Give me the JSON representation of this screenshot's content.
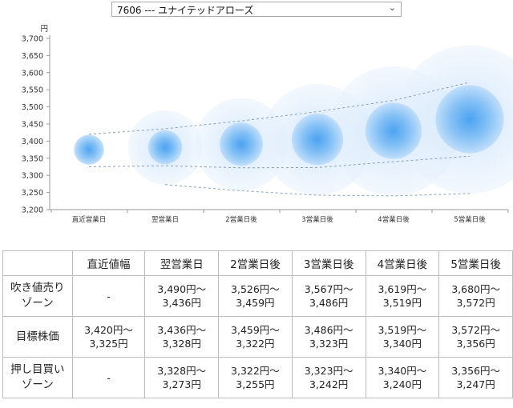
{
  "stock_selector": {
    "value": "7606 --- ユナイテッドアローズ"
  },
  "chart_data": {
    "type": "scatter",
    "unit": "円",
    "categories": [
      "直近営業日",
      "翌営業日",
      "2営業日後",
      "3営業日後",
      "4営業日後",
      "5営業日後"
    ],
    "ylim": [
      3200,
      3700
    ],
    "yticks": [
      "3,200",
      "3,250",
      "3,300",
      "3,350",
      "3,400",
      "3,450",
      "3,500",
      "3,550",
      "3,600",
      "3,650",
      "3,700"
    ],
    "points": [
      {
        "category": "直近営業日",
        "center": 3375,
        "inner_high": 3420,
        "inner_low": 3325
      },
      {
        "category": "翌営業日",
        "center": 3382,
        "inner_high": 3436,
        "inner_low": 3328,
        "outer_high": 3490,
        "outer_low": 3273
      },
      {
        "category": "2営業日後",
        "center": 3391,
        "inner_high": 3459,
        "inner_low": 3322,
        "outer_high": 3526,
        "outer_low": 3255
      },
      {
        "category": "3営業日後",
        "center": 3405,
        "inner_high": 3486,
        "inner_low": 3323,
        "outer_high": 3567,
        "outer_low": 3242
      },
      {
        "category": "4営業日後",
        "center": 3430,
        "inner_high": 3519,
        "inner_low": 3340,
        "outer_high": 3619,
        "outer_low": 3240
      },
      {
        "category": "5営業日後",
        "center": 3464,
        "inner_high": 3572,
        "inner_low": 3356,
        "outer_high": 3680,
        "outer_low": 3247
      }
    ],
    "grid": false,
    "colors": {
      "bubble": "#3d9bf0",
      "axis": "#999999",
      "dash": "#8aa0b8"
    }
  },
  "table": {
    "headers": [
      "",
      "直近値幅",
      "翌営業日",
      "2営業日後",
      "3営業日後",
      "4営業日後",
      "5営業日後"
    ],
    "rows": [
      {
        "label": [
          "吹き値売り",
          "ゾーン"
        ],
        "cells": [
          [
            "-"
          ],
          [
            "3,490円～",
            "3,436円"
          ],
          [
            "3,526円～",
            "3,459円"
          ],
          [
            "3,567円～",
            "3,486円"
          ],
          [
            "3,619円～",
            "3,519円"
          ],
          [
            "3,680円～",
            "3,572円"
          ]
        ]
      },
      {
        "label": [
          "目標株価"
        ],
        "cells": [
          [
            "3,420円～",
            "3,325円"
          ],
          [
            "3,436円～",
            "3,328円"
          ],
          [
            "3,459円～",
            "3,322円"
          ],
          [
            "3,486円～",
            "3,323円"
          ],
          [
            "3,519円～",
            "3,340円"
          ],
          [
            "3,572円～",
            "3,356円"
          ]
        ]
      },
      {
        "label": [
          "押し目買い",
          "ゾーン"
        ],
        "cells": [
          [
            "-"
          ],
          [
            "3,328円～",
            "3,273円"
          ],
          [
            "3,322円～",
            "3,255円"
          ],
          [
            "3,323円～",
            "3,242円"
          ],
          [
            "3,340円～",
            "3,240円"
          ],
          [
            "3,356円～",
            "3,247円"
          ]
        ]
      }
    ]
  }
}
